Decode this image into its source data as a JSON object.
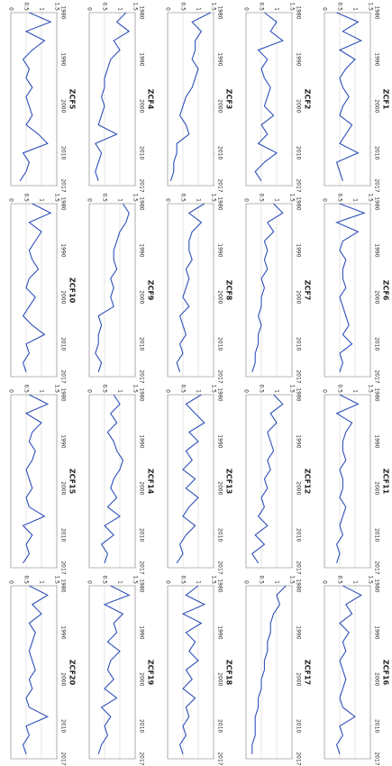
{
  "chart_data": [
    {
      "type": "line",
      "title": "ZCF5",
      "x": [
        1980,
        1982,
        1984,
        1986,
        1988,
        1990,
        1992,
        1994,
        1996,
        1998,
        2000,
        2002,
        2004,
        2006,
        2008,
        2010,
        2012,
        2014,
        2016
      ],
      "xlim": [
        1980,
        2017
      ],
      "xticks": [
        1980,
        1990,
        2000,
        2010,
        2017
      ],
      "ylim": [
        0,
        1.5
      ],
      "yticks": [
        0,
        0.5,
        1,
        1.5
      ],
      "grid": true,
      "color": "#3050b8",
      "values": [
        0.6,
        1.3,
        0.5,
        1.1,
        0.7,
        0.4,
        0.6,
        0.5,
        0.7,
        0.5,
        0.6,
        0.7,
        0.5,
        0.9,
        1.2,
        0.4,
        0.6,
        0.5,
        0.3
      ]
    },
    {
      "type": "line",
      "title": "ZCF4",
      "x": [
        1980,
        1982,
        1984,
        1986,
        1988,
        1990,
        1992,
        1994,
        1996,
        1998,
        2000,
        2002,
        2004,
        2006,
        2008,
        2010,
        2012,
        2014,
        2016
      ],
      "xlim": [
        1980,
        2017
      ],
      "xticks": [
        1980,
        1990,
        2000,
        2010,
        2017
      ],
      "ylim": [
        0,
        1.5
      ],
      "yticks": [
        0,
        0.5,
        1,
        1.5
      ],
      "grid": true,
      "color": "#3050b8",
      "values": [
        1.2,
        0.9,
        1.3,
        0.8,
        1.0,
        0.7,
        0.6,
        0.5,
        0.5,
        0.4,
        0.5,
        0.4,
        0.3,
        0.9,
        0.2,
        0.4,
        0.3,
        0.2,
        0.3
      ]
    },
    {
      "type": "line",
      "title": "ZCF3",
      "x": [
        1980,
        1982,
        1984,
        1986,
        1988,
        1990,
        1992,
        1994,
        1996,
        1998,
        2000,
        2002,
        2004,
        2006,
        2008,
        2010,
        2012,
        2014,
        2016
      ],
      "xlim": [
        1980,
        2017
      ],
      "xticks": [
        1980,
        1990,
        2000,
        2010,
        2017
      ],
      "ylim": [
        0,
        1.5
      ],
      "yticks": [
        0,
        0.5,
        1,
        1.5
      ],
      "grid": true,
      "color": "#3050b8",
      "values": [
        1.4,
        0.8,
        1.1,
        0.9,
        0.9,
        0.8,
        1.0,
        0.9,
        0.8,
        0.6,
        0.5,
        0.4,
        0.6,
        0.7,
        0.3,
        0.3,
        0.2,
        0.2,
        0.1
      ]
    },
    {
      "type": "line",
      "title": "ZCF2",
      "x": [
        1980,
        1982,
        1984,
        1986,
        1988,
        1990,
        1992,
        1994,
        1996,
        1998,
        2000,
        2002,
        2004,
        2006,
        2008,
        2010,
        2012,
        2014,
        2016
      ],
      "xlim": [
        1980,
        2017
      ],
      "xticks": [
        1980,
        1990,
        2000,
        2010,
        2017
      ],
      "ylim": [
        0,
        1.5
      ],
      "yticks": [
        0,
        0.5,
        1,
        1.5
      ],
      "grid": true,
      "color": "#3050b8",
      "values": [
        0.6,
        1.0,
        0.8,
        1.2,
        0.4,
        0.7,
        0.5,
        0.6,
        0.8,
        0.7,
        0.6,
        0.9,
        0.5,
        0.7,
        0.4,
        1.0,
        0.6,
        0.3,
        0.5
      ]
    },
    {
      "type": "line",
      "title": "ZCF1",
      "x": [
        1980,
        1982,
        1984,
        1986,
        1988,
        1990,
        1992,
        1994,
        1996,
        1998,
        2000,
        2002,
        2004,
        2006,
        2008,
        2010,
        2012,
        2014,
        2016
      ],
      "xlim": [
        1980,
        2017
      ],
      "xticks": [
        1980,
        1990,
        2000,
        2010,
        2017
      ],
      "ylim": [
        0,
        1.5
      ],
      "yticks": [
        0,
        0.5,
        1,
        1.5
      ],
      "grid": true,
      "color": "#3050b8",
      "values": [
        0.4,
        1.1,
        0.6,
        1.2,
        0.5,
        1.0,
        0.7,
        0.5,
        0.6,
        0.8,
        0.6,
        0.5,
        0.9,
        0.7,
        0.5,
        1.1,
        0.4,
        0.5,
        0.6
      ]
    },
    {
      "type": "line",
      "title": "ZCF10",
      "x": [
        1980,
        1982,
        1984,
        1986,
        1988,
        1990,
        1992,
        1994,
        1996,
        1998,
        2000,
        2002,
        2004,
        2006,
        2008,
        2010,
        2012,
        2014,
        2016
      ],
      "xlim": [
        1980,
        2017
      ],
      "xticks": [
        1980,
        1990,
        2000,
        2010,
        2017
      ],
      "ylim": [
        0,
        1.5
      ],
      "yticks": [
        0,
        0.5,
        1,
        1.5
      ],
      "grid": true,
      "color": "#3050b8",
      "values": [
        0.7,
        1.3,
        0.6,
        1.0,
        0.8,
        0.6,
        0.7,
        0.9,
        0.6,
        0.5,
        0.8,
        0.6,
        0.4,
        0.7,
        1.1,
        0.5,
        0.6,
        0.4,
        0.5
      ]
    },
    {
      "type": "line",
      "title": "ZCF9",
      "x": [
        1980,
        1982,
        1984,
        1986,
        1988,
        1990,
        1992,
        1994,
        1996,
        1998,
        2000,
        2002,
        2004,
        2006,
        2008,
        2010,
        2012,
        2014,
        2016
      ],
      "xlim": [
        1980,
        2017
      ],
      "xticks": [
        1980,
        1990,
        2000,
        2010,
        2017
      ],
      "ylim": [
        0,
        1.5
      ],
      "yticks": [
        0,
        0.5,
        1,
        1.5
      ],
      "grid": true,
      "color": "#3050b8",
      "values": [
        1.1,
        1.3,
        1.2,
        1.0,
        0.9,
        0.8,
        0.8,
        0.9,
        0.7,
        0.8,
        0.7,
        0.8,
        0.3,
        0.4,
        0.3,
        0.3,
        0.2,
        0.4,
        0.3
      ]
    },
    {
      "type": "line",
      "title": "ZCF8",
      "x": [
        1980,
        1982,
        1984,
        1986,
        1988,
        1990,
        1992,
        1994,
        1996,
        1998,
        2000,
        2002,
        2004,
        2006,
        2008,
        2010,
        2012,
        2014,
        2016
      ],
      "xlim": [
        1980,
        2017
      ],
      "xticks": [
        1980,
        1990,
        2000,
        2010,
        2017
      ],
      "ylim": [
        0,
        1.5
      ],
      "yticks": [
        0,
        0.5,
        1,
        1.5
      ],
      "grid": true,
      "color": "#3050b8",
      "values": [
        1.2,
        0.7,
        1.1,
        0.8,
        0.7,
        0.7,
        0.8,
        0.6,
        0.7,
        0.6,
        0.5,
        0.7,
        0.4,
        0.5,
        0.6,
        0.4,
        0.5,
        0.3,
        0.4
      ]
    },
    {
      "type": "line",
      "title": "ZCF7",
      "x": [
        1980,
        1982,
        1984,
        1986,
        1988,
        1990,
        1992,
        1994,
        1996,
        1998,
        2000,
        2002,
        2004,
        2006,
        2008,
        2010,
        2012,
        2014,
        2016
      ],
      "xlim": [
        1980,
        2017
      ],
      "xticks": [
        1980,
        1990,
        2000,
        2010,
        2017
      ],
      "ylim": [
        0,
        1.5
      ],
      "yticks": [
        0,
        0.5,
        1,
        1.5
      ],
      "grid": true,
      "color": "#3050b8",
      "values": [
        0.9,
        1.2,
        0.7,
        0.9,
        0.6,
        0.7,
        0.6,
        0.7,
        0.5,
        0.6,
        0.5,
        0.5,
        0.4,
        0.5,
        0.4,
        0.4,
        0.3,
        0.3,
        0.2
      ]
    },
    {
      "type": "line",
      "title": "ZCF6",
      "x": [
        1980,
        1982,
        1984,
        1986,
        1988,
        1990,
        1992,
        1994,
        1996,
        1998,
        2000,
        2002,
        2004,
        2006,
        2008,
        2010,
        2012,
        2014,
        2016
      ],
      "xlim": [
        1980,
        2017
      ],
      "xticks": [
        1980,
        1990,
        2000,
        2010,
        2017
      ],
      "ylim": [
        0,
        1.5
      ],
      "yticks": [
        0,
        0.5,
        1,
        1.5
      ],
      "grid": true,
      "color": "#3050b8",
      "values": [
        0.5,
        1.3,
        0.4,
        1.1,
        0.6,
        0.5,
        0.7,
        0.6,
        0.6,
        0.7,
        0.5,
        0.6,
        0.7,
        0.8,
        0.6,
        0.9,
        0.5,
        0.6,
        0.5
      ]
    },
    {
      "type": "line",
      "title": "ZCF15",
      "x": [
        1980,
        1982,
        1984,
        1986,
        1988,
        1990,
        1992,
        1994,
        1996,
        1998,
        2000,
        2002,
        2004,
        2006,
        2008,
        2010,
        2012,
        2014,
        2016
      ],
      "xlim": [
        1980,
        2017
      ],
      "xticks": [
        1980,
        1990,
        2000,
        2010,
        2017
      ],
      "ylim": [
        0,
        1.5
      ],
      "yticks": [
        0,
        0.5,
        1,
        1.5
      ],
      "grid": true,
      "color": "#3050b8",
      "values": [
        0.6,
        1.2,
        0.5,
        1.0,
        0.7,
        0.6,
        0.8,
        0.7,
        0.5,
        0.6,
        0.7,
        0.5,
        0.6,
        1.1,
        0.4,
        0.7,
        0.5,
        0.6,
        0.4
      ]
    },
    {
      "type": "line",
      "title": "ZCF14",
      "x": [
        1980,
        1982,
        1984,
        1986,
        1988,
        1990,
        1992,
        1994,
        1996,
        1998,
        2000,
        2002,
        2004,
        2006,
        2008,
        2010,
        2012,
        2014,
        2016
      ],
      "xlim": [
        1980,
        2017
      ],
      "xticks": [
        1980,
        1990,
        2000,
        2010,
        2017
      ],
      "ylim": [
        0,
        1.5
      ],
      "yticks": [
        0,
        0.5,
        1,
        1.5
      ],
      "grid": true,
      "color": "#3050b8",
      "values": [
        0.8,
        1.0,
        0.7,
        0.9,
        0.6,
        0.8,
        0.9,
        1.1,
        1.0,
        0.8,
        0.7,
        0.9,
        0.6,
        1.0,
        0.5,
        0.8,
        0.4,
        0.6,
        0.5
      ]
    },
    {
      "type": "line",
      "title": "ZCF13",
      "x": [
        1980,
        1982,
        1984,
        1986,
        1988,
        1990,
        1992,
        1994,
        1996,
        1998,
        2000,
        2002,
        2004,
        2006,
        2008,
        2010,
        2012,
        2014,
        2016
      ],
      "xlim": [
        1980,
        2017
      ],
      "xticks": [
        1980,
        1990,
        2000,
        2010,
        2017
      ],
      "ylim": [
        0,
        1.5
      ],
      "yticks": [
        0,
        0.5,
        1,
        1.5
      ],
      "grid": true,
      "color": "#3050b8",
      "values": [
        1.1,
        0.6,
        0.9,
        1.2,
        0.7,
        1.0,
        0.6,
        0.8,
        0.5,
        0.9,
        0.6,
        1.0,
        0.7,
        0.5,
        0.9,
        0.6,
        0.4,
        0.5,
        0.3
      ]
    },
    {
      "type": "line",
      "title": "ZCF12",
      "x": [
        1980,
        1982,
        1984,
        1986,
        1988,
        1990,
        1992,
        1994,
        1996,
        1998,
        2000,
        2002,
        2004,
        2006,
        2008,
        2010,
        2012,
        2014,
        2016
      ],
      "xlim": [
        1980,
        2017
      ],
      "xticks": [
        1980,
        1990,
        2000,
        2010,
        2017
      ],
      "ylim": [
        0,
        1.5
      ],
      "yticks": [
        0,
        0.5,
        1,
        1.5
      ],
      "grid": true,
      "color": "#3050b8",
      "values": [
        0.9,
        1.2,
        0.8,
        1.0,
        0.7,
        0.8,
        0.9,
        0.7,
        0.8,
        0.6,
        0.7,
        0.5,
        0.6,
        0.4,
        0.7,
        0.3,
        0.6,
        0.2,
        0.4
      ]
    },
    {
      "type": "line",
      "title": "ZCF11",
      "x": [
        1980,
        1982,
        1984,
        1986,
        1988,
        1990,
        1992,
        1994,
        1996,
        1998,
        2000,
        2002,
        2004,
        2006,
        2008,
        2010,
        2012,
        2014,
        2016
      ],
      "xlim": [
        1980,
        2017
      ],
      "xticks": [
        1980,
        1990,
        2000,
        2010,
        2017
      ],
      "ylim": [
        0,
        1.5
      ],
      "yticks": [
        0,
        0.5,
        1,
        1.5
      ],
      "grid": true,
      "color": "#3050b8",
      "values": [
        0.5,
        1.1,
        0.4,
        0.9,
        0.7,
        0.6,
        0.6,
        0.7,
        0.5,
        0.6,
        0.6,
        0.5,
        0.7,
        0.6,
        0.5,
        0.6,
        0.4,
        0.5,
        0.4
      ]
    },
    {
      "type": "line",
      "title": "ZCF20",
      "x": [
        1980,
        1982,
        1984,
        1986,
        1988,
        1990,
        1992,
        1994,
        1996,
        1998,
        2000,
        2002,
        2004,
        2006,
        2008,
        2010,
        2012,
        2014,
        2016
      ],
      "xlim": [
        1980,
        2017
      ],
      "xticks": [
        1980,
        1990,
        2000,
        2010,
        2017
      ],
      "ylim": [
        0,
        1.5
      ],
      "yticks": [
        0,
        0.5,
        1,
        1.5
      ],
      "grid": true,
      "color": "#3050b8",
      "values": [
        0.6,
        1.2,
        0.7,
        1.0,
        0.6,
        0.8,
        0.7,
        0.6,
        0.7,
        0.8,
        0.6,
        0.7,
        0.5,
        0.6,
        1.2,
        0.5,
        0.6,
        0.4,
        0.5
      ]
    },
    {
      "type": "line",
      "title": "ZCF19",
      "x": [
        1980,
        1982,
        1984,
        1986,
        1988,
        1990,
        1992,
        1994,
        1996,
        1998,
        2000,
        2002,
        2004,
        2006,
        2008,
        2010,
        2012,
        2014,
        2016
      ],
      "xlim": [
        1980,
        2017
      ],
      "xticks": [
        1980,
        1990,
        2000,
        2010,
        2017
      ],
      "ylim": [
        0,
        1.5
      ],
      "yticks": [
        0,
        0.5,
        1,
        1.5
      ],
      "grid": true,
      "color": "#3050b8",
      "values": [
        0.7,
        1.3,
        0.5,
        1.1,
        0.8,
        0.9,
        0.6,
        1.0,
        0.7,
        0.6,
        0.8,
        0.5,
        0.9,
        0.4,
        0.7,
        0.5,
        0.6,
        0.4,
        0.3
      ]
    },
    {
      "type": "line",
      "title": "ZCF18",
      "x": [
        1980,
        1982,
        1984,
        1986,
        1988,
        1990,
        1992,
        1994,
        1996,
        1998,
        2000,
        2002,
        2004,
        2006,
        2008,
        2010,
        2012,
        2014,
        2016
      ],
      "xlim": [
        1980,
        2017
      ],
      "xticks": [
        1980,
        1990,
        2000,
        2010,
        2017
      ],
      "ylim": [
        0,
        1.5
      ],
      "yticks": [
        0,
        0.5,
        1,
        1.5
      ],
      "grid": true,
      "color": "#3050b8",
      "values": [
        1.0,
        0.6,
        1.2,
        0.5,
        1.1,
        0.6,
        0.9,
        0.7,
        1.0,
        0.6,
        0.8,
        0.5,
        0.9,
        0.6,
        0.7,
        0.5,
        0.6,
        0.4,
        0.5
      ]
    },
    {
      "type": "line",
      "title": "ZCF17",
      "x": [
        1980,
        1982,
        1984,
        1986,
        1988,
        1990,
        1992,
        1994,
        1996,
        1998,
        2000,
        2002,
        2004,
        2006,
        2008,
        2010,
        2012,
        2014,
        2016
      ],
      "xlim": [
        1980,
        2017
      ],
      "xticks": [
        1980,
        1990,
        2000,
        2010,
        2017
      ],
      "ylim": [
        0,
        1.5
      ],
      "yticks": [
        0,
        0.5,
        1,
        1.5
      ],
      "grid": true,
      "color": "#3050b8",
      "values": [
        1.3,
        1.0,
        1.1,
        0.9,
        0.8,
        0.8,
        0.7,
        0.7,
        0.6,
        0.6,
        0.5,
        0.5,
        0.4,
        0.4,
        0.3,
        0.3,
        0.3,
        0.2,
        0.2
      ]
    },
    {
      "type": "line",
      "title": "ZCF16",
      "x": [
        1980,
        1982,
        1984,
        1986,
        1988,
        1990,
        1992,
        1994,
        1996,
        1998,
        2000,
        2002,
        2004,
        2006,
        2008,
        2010,
        2012,
        2014,
        2016
      ],
      "xlim": [
        1980,
        2017
      ],
      "xticks": [
        1980,
        1990,
        2000,
        2010,
        2017
      ],
      "ylim": [
        0,
        1.5
      ],
      "yticks": [
        0,
        0.5,
        1,
        1.5
      ],
      "grid": true,
      "color": "#3050b8",
      "values": [
        0.6,
        1.2,
        0.7,
        0.9,
        0.5,
        0.8,
        0.6,
        0.7,
        0.5,
        0.6,
        0.7,
        0.6,
        0.5,
        0.6,
        1.0,
        0.5,
        0.6,
        0.4,
        0.5
      ]
    }
  ]
}
